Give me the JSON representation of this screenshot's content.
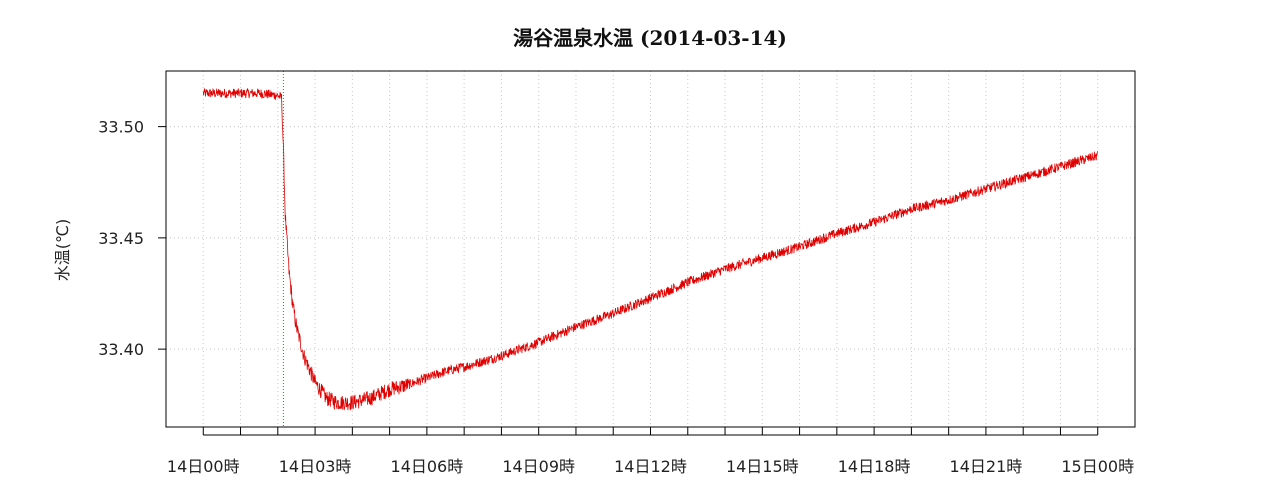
{
  "chart_data": {
    "type": "line",
    "title": "湯谷温泉水温 (2014-03-14)",
    "xlabel": "",
    "ylabel": "水温(℃)",
    "x_tick_labels": [
      "14日00時",
      "14日03時",
      "14日06時",
      "14日09時",
      "14日12時",
      "14日15時",
      "14日18時",
      "14日21時",
      "15日00時"
    ],
    "x_tick_hours": [
      0,
      3,
      6,
      9,
      12,
      15,
      18,
      21,
      24
    ],
    "x_minor_tick_hours": [
      1,
      2,
      4,
      5,
      7,
      8,
      10,
      11,
      13,
      14,
      16,
      17,
      19,
      20,
      22,
      23
    ],
    "xlim_hours": [
      -1.0,
      25.0
    ],
    "y_tick_values": [
      33.4,
      33.45,
      33.5
    ],
    "y_tick_labels": [
      "33.40",
      "33.45",
      "33.50"
    ],
    "ylim": [
      33.365,
      33.525
    ],
    "grid": true,
    "marker_line_hour": 2.15,
    "series": [
      {
        "color": "#e00000",
        "hours": [
          0.0,
          0.5,
          1.0,
          1.5,
          2.0,
          2.1,
          2.15,
          2.2,
          2.3,
          2.4,
          2.5,
          2.7,
          3.0,
          3.3,
          3.6,
          4.0,
          4.5,
          5.0,
          5.5,
          6.0,
          6.5,
          7.0,
          8.0,
          9.0,
          10.0,
          11.0,
          12.0,
          13.0,
          14.0,
          15.0,
          16.0,
          17.0,
          18.0,
          19.0,
          20.0,
          21.0,
          22.0,
          23.0,
          24.0
        ],
        "values": [
          33.515,
          33.515,
          33.515,
          33.515,
          33.514,
          33.513,
          33.49,
          33.46,
          33.435,
          33.42,
          33.41,
          33.397,
          33.385,
          33.378,
          33.376,
          33.376,
          33.378,
          33.382,
          33.384,
          33.387,
          33.39,
          33.392,
          33.397,
          33.403,
          33.41,
          33.416,
          33.423,
          33.43,
          33.436,
          33.441,
          33.446,
          33.452,
          33.457,
          33.463,
          33.467,
          33.472,
          33.477,
          33.482,
          33.487
        ]
      }
    ]
  }
}
